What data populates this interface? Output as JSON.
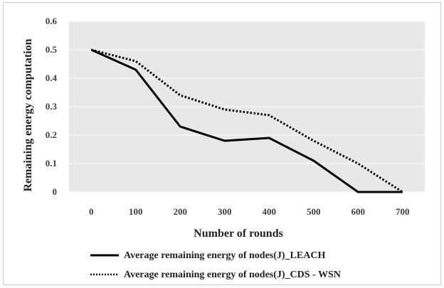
{
  "chart_data": {
    "type": "line",
    "title": "",
    "xlabel": "Number of rounds",
    "ylabel": "Remaining energy computation",
    "x": [
      0,
      100,
      200,
      300,
      400,
      500,
      600,
      700
    ],
    "x_tick_labels": [
      "0",
      "100",
      "200",
      "300",
      "400",
      "500",
      "600",
      "700"
    ],
    "y_tick_labels": [
      "0",
      "0.1",
      "0.2",
      "0.3",
      "0.4",
      "0.5",
      "0.6"
    ],
    "ylim": [
      0,
      0.6
    ],
    "grid": true,
    "legend_position": "bottom",
    "series": [
      {
        "name": "Average remaining energy of nodes(J)_LEACH",
        "style": "solid",
        "color": "#000000",
        "values": [
          0.5,
          0.43,
          0.23,
          0.18,
          0.19,
          0.11,
          0.0,
          0.0
        ]
      },
      {
        "name": "Average remaining energy of nodes(J)_CDS - WSN",
        "style": "dotted",
        "color": "#000000",
        "values": [
          0.5,
          0.46,
          0.34,
          0.29,
          0.27,
          0.18,
          0.1,
          0.0
        ]
      }
    ],
    "colors": {
      "plot_background": "#e8e8e8",
      "gridline": "#ffffff"
    }
  }
}
